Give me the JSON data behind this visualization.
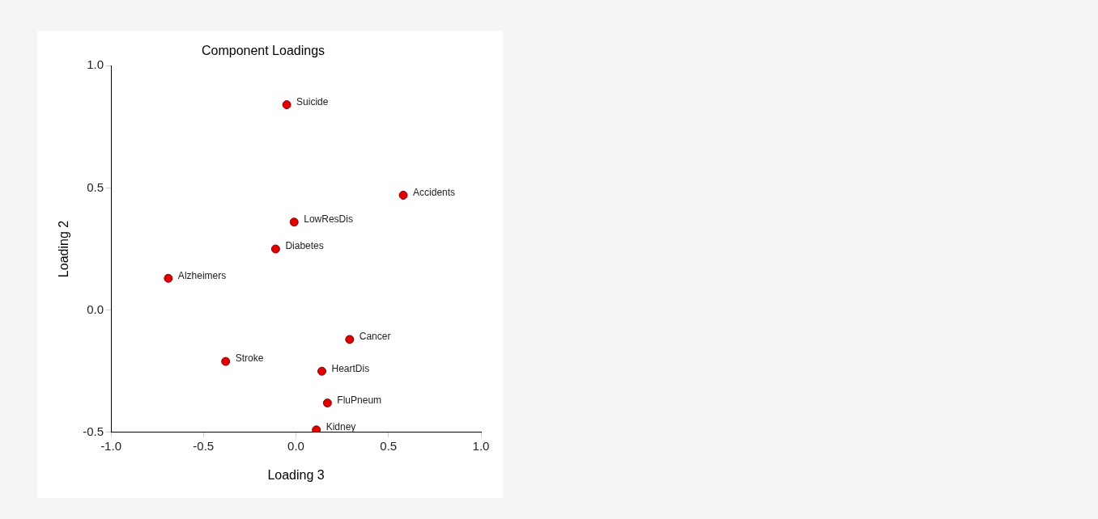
{
  "chart_data": {
    "type": "scatter",
    "title": "Component Loadings",
    "xlabel": "Loading 3",
    "ylabel": "Loading 2",
    "x": [
      -0.05,
      0.58,
      -0.01,
      -0.11,
      -0.69,
      0.29,
      -0.38,
      0.14,
      0.17,
      0.11
    ],
    "series": [
      {
        "color": "#e00000",
        "values": [
          0.84,
          0.47,
          0.36,
          0.25,
          0.13,
          -0.12,
          -0.21,
          -0.25,
          -0.38,
          -0.49
        ]
      }
    ],
    "annotations": [
      {
        "text": "Suicide",
        "x": -0.05,
        "y": 0.84
      },
      {
        "text": "Accidents",
        "x": 0.58,
        "y": 0.47
      },
      {
        "text": "LowResDis",
        "x": -0.01,
        "y": 0.36
      },
      {
        "text": "Diabetes",
        "x": -0.11,
        "y": 0.25
      },
      {
        "text": "Alzheimers",
        "x": -0.69,
        "y": 0.13
      },
      {
        "text": "Cancer",
        "x": 0.29,
        "y": -0.12
      },
      {
        "text": "Stroke",
        "x": -0.38,
        "y": -0.21
      },
      {
        "text": "HeartDis",
        "x": 0.14,
        "y": -0.25
      },
      {
        "text": "FluPneum",
        "x": 0.17,
        "y": -0.38
      },
      {
        "text": "Kidney",
        "x": 0.11,
        "y": -0.49
      }
    ],
    "xlim": [
      -1.0,
      1.0
    ],
    "xticks": [
      {
        "value": -1,
        "label": "-1.0"
      },
      {
        "value": -0.5,
        "label": "-0.5"
      },
      {
        "value": 0,
        "label": "0.0"
      },
      {
        "value": 0.5,
        "label": "0.5"
      },
      {
        "value": 1,
        "label": "1.0"
      }
    ],
    "ylim": [
      -0.5,
      1.0
    ],
    "yticks": [
      {
        "value": -0.5,
        "label": "-0.5"
      },
      {
        "value": 0,
        "label": "0.0"
      },
      {
        "value": 0.5,
        "label": "0.5"
      },
      {
        "value": 1,
        "label": "1.0"
      }
    ],
    "grid": false,
    "legend": false,
    "marker": "circle"
  }
}
